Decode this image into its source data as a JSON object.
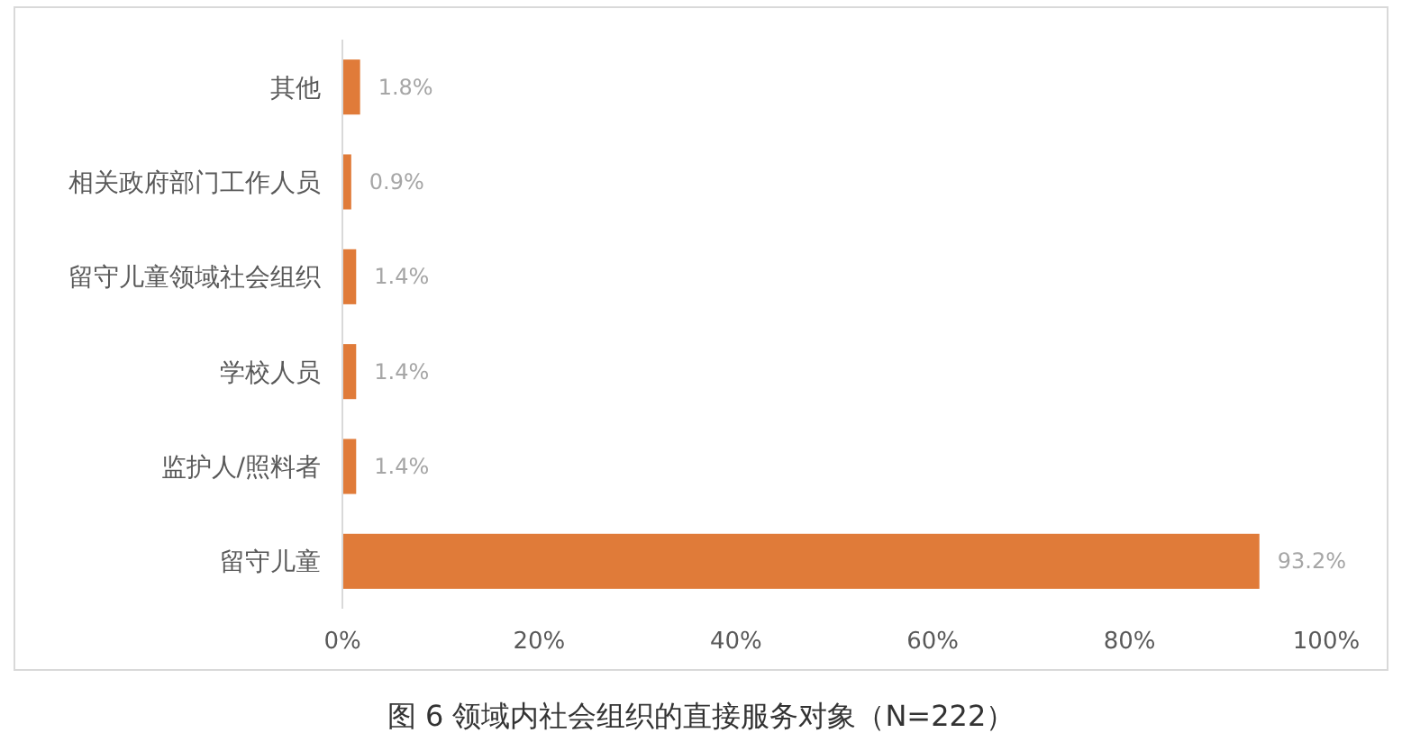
{
  "chart_data": {
    "type": "bar",
    "orientation": "horizontal",
    "title": "图 6 领域内社会组织的直接服务对象（N=222）",
    "categories": [
      "其他",
      "相关政府部门工作人员",
      "留守儿童领域社会组织",
      "学校人员",
      "监护人/照料者",
      "留守儿童"
    ],
    "values": [
      1.8,
      0.9,
      1.4,
      1.4,
      1.4,
      93.2
    ],
    "value_labels": [
      "1.8%",
      "0.9%",
      "1.4%",
      "1.4%",
      "1.4%",
      "93.2%"
    ],
    "color": "#e07b39",
    "xlim": [
      0,
      100
    ],
    "xticks": [
      {
        "value": 0,
        "label": "0%"
      },
      {
        "value": 20,
        "label": "20%"
      },
      {
        "value": 40,
        "label": "40%"
      },
      {
        "value": 60,
        "label": "60%"
      },
      {
        "value": 80,
        "label": "80%"
      },
      {
        "value": 100,
        "label": "100%"
      }
    ]
  }
}
